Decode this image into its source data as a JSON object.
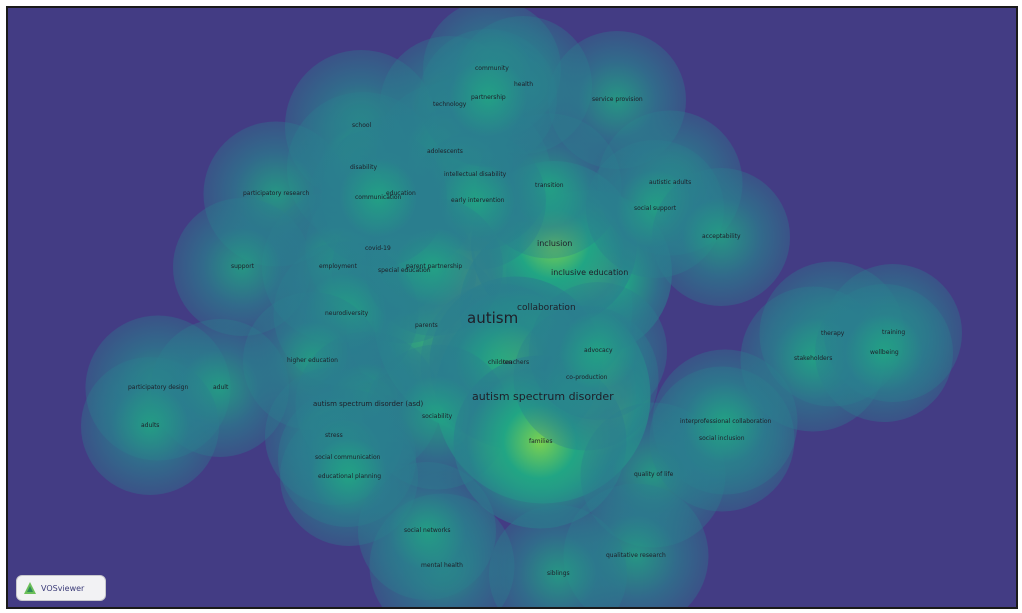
{
  "app": {
    "brand": "VOSviewer",
    "view": "Density visualization"
  },
  "colors": {
    "background": "#433c84",
    "low": "#2a7e8e",
    "mid": "#21a584",
    "high": "#7ad151",
    "peak": "#fde725",
    "label": "#1e1e28"
  },
  "terms": [
    {
      "label": "autism",
      "density": 1.0,
      "size": 15
    },
    {
      "label": "autism spectrum disorder",
      "density": 0.85,
      "size": 11
    },
    {
      "label": "collaboration",
      "density": 0.55,
      "size": 9
    },
    {
      "label": "inclusive education",
      "density": 0.5,
      "size": 8
    },
    {
      "label": "inclusion",
      "density": 0.5,
      "size": 8
    },
    {
      "label": "parents",
      "density": 0.45,
      "size": 6
    },
    {
      "label": "teachers",
      "density": 0.55,
      "size": 6
    },
    {
      "label": "children",
      "density": 0.45,
      "size": 6
    },
    {
      "label": "school",
      "density": 0.4,
      "size": 6
    },
    {
      "label": "disability",
      "density": 0.4,
      "size": 6
    },
    {
      "label": "education",
      "density": 0.45,
      "size": 6
    },
    {
      "label": "participatory research",
      "density": 0.35,
      "size": 6
    },
    {
      "label": "covid-19",
      "density": 0.35,
      "size": 6
    },
    {
      "label": "employment",
      "density": 0.4,
      "size": 6
    },
    {
      "label": "mental health",
      "density": 0.35,
      "size": 6
    },
    {
      "label": "special education",
      "density": 0.35,
      "size": 6
    },
    {
      "label": "neurodiversity",
      "density": 0.35,
      "size": 6
    },
    {
      "label": "higher education",
      "density": 0.3,
      "size": 6
    },
    {
      "label": "participatory design",
      "density": 0.35,
      "size": 6
    },
    {
      "label": "adult",
      "density": 0.3,
      "size": 6
    },
    {
      "label": "adults",
      "density": 0.3,
      "size": 6
    },
    {
      "label": "autism spectrum disorder (asd)",
      "density": 0.35,
      "size": 7
    },
    {
      "label": "sociability",
      "density": 0.35,
      "size": 6
    },
    {
      "label": "stress",
      "density": 0.3,
      "size": 6
    },
    {
      "label": "social communication",
      "density": 0.3,
      "size": 6
    },
    {
      "label": "educational planning",
      "density": 0.3,
      "size": 6
    },
    {
      "label": "families",
      "density": 0.55,
      "size": 6
    },
    {
      "label": "therapy",
      "density": 0.35,
      "size": 6
    },
    {
      "label": "health",
      "density": 0.3,
      "size": 6
    },
    {
      "label": "technology",
      "density": 0.3,
      "size": 6
    },
    {
      "label": "community",
      "density": 0.3,
      "size": 6
    },
    {
      "label": "adolescents",
      "density": 0.3,
      "size": 6
    },
    {
      "label": "quality of life",
      "density": 0.35,
      "size": 6
    },
    {
      "label": "social inclusion",
      "density": 0.35,
      "size": 6
    },
    {
      "label": "qualitative research",
      "density": 0.35,
      "size": 6
    },
    {
      "label": "intellectual disability",
      "density": 0.4,
      "size": 6
    },
    {
      "label": "transition",
      "density": 0.35,
      "size": 6
    },
    {
      "label": "autistic adults",
      "density": 0.35,
      "size": 6
    },
    {
      "label": "co-production",
      "density": 0.35,
      "size": 6
    },
    {
      "label": "early intervention",
      "density": 0.3,
      "size": 6
    },
    {
      "label": "interprofessional collaboration",
      "density": 0.35,
      "size": 6
    },
    {
      "label": "stakeholders",
      "density": 0.35,
      "size": 6
    },
    {
      "label": "service provision",
      "density": 0.3,
      "size": 6
    },
    {
      "label": "training",
      "density": 0.3,
      "size": 6
    },
    {
      "label": "wellbeing",
      "density": 0.3,
      "size": 6
    },
    {
      "label": "advocacy",
      "density": 0.3,
      "size": 6
    },
    {
      "label": "support",
      "density": 0.3,
      "size": 6
    },
    {
      "label": "social networks",
      "density": 0.3,
      "size": 6
    },
    {
      "label": "social support",
      "density": 0.3,
      "size": 6
    },
    {
      "label": "acceptability",
      "density": 0.3,
      "size": 6
    },
    {
      "label": "parent partnership",
      "density": 0.3,
      "size": 6
    },
    {
      "label": "partnership",
      "density": 0.3,
      "size": 6
    },
    {
      "label": "siblings",
      "density": 0.3,
      "size": 6
    },
    {
      "label": "communication",
      "density": 0.3,
      "size": 6
    }
  ]
}
